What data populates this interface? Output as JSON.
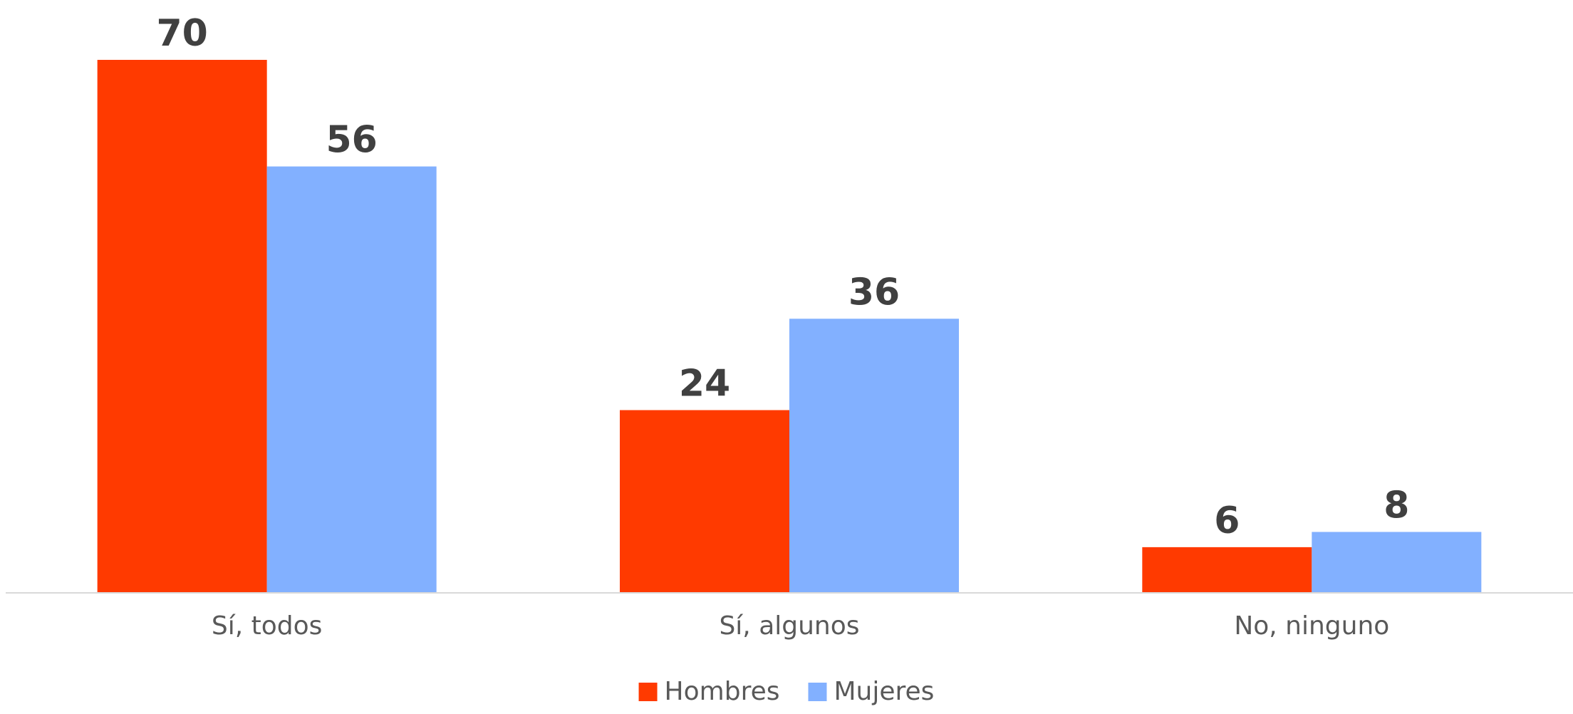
{
  "chart_data": {
    "type": "bar",
    "title": "",
    "xlabel": "",
    "ylabel": "",
    "categories": [
      "Sí, todos",
      "Sí, algunos",
      "No, ninguno"
    ],
    "series": [
      {
        "name": "Hombres",
        "values": [
          70,
          24,
          6
        ],
        "color": "#ff3a00"
      },
      {
        "name": "Mujeres",
        "values": [
          56,
          36,
          8
        ],
        "color": "#82b0ff"
      }
    ],
    "ylim": [
      0,
      70
    ],
    "grid": false,
    "legend_position": "bottom",
    "data_labels": true,
    "axis_color": "#d9d9d9"
  }
}
